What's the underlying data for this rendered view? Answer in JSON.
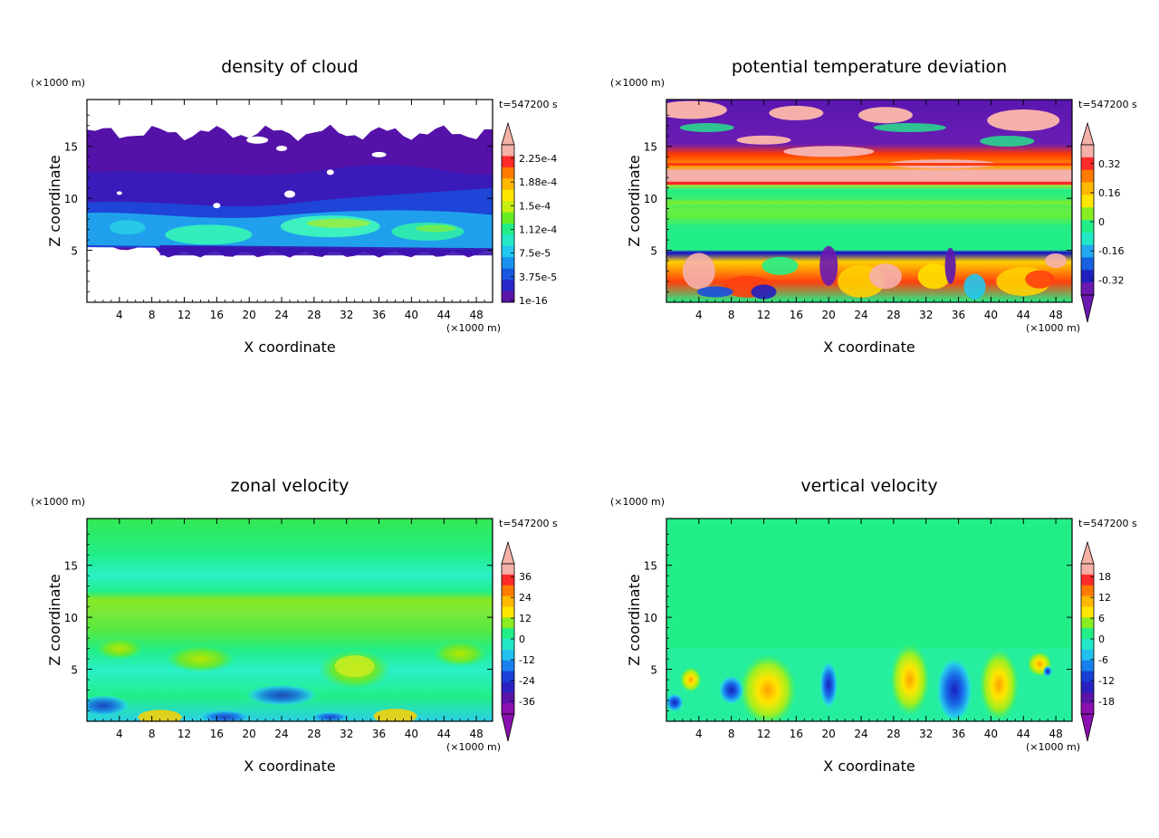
{
  "panels": [
    {
      "id": "cloud",
      "title": "density of cloud",
      "time_label": "t=547200 s",
      "xlabel": "X coordinate",
      "ylabel": "Z coordinate",
      "x_unit": "(×1000 m)",
      "y_unit": "(×1000 m)",
      "x_ticks": [
        "4",
        "8",
        "12",
        "16",
        "20",
        "24",
        "28",
        "32",
        "36",
        "40",
        "44",
        "48"
      ],
      "y_ticks": [
        "5",
        "10",
        "15"
      ],
      "colorbar_labels": [
        "2.25e-4",
        "1.88e-4",
        "1.5e-4",
        "1.12e-4",
        "7.5e-5",
        "3.75e-5",
        "1e-16"
      ]
    },
    {
      "id": "theta",
      "title": "potential temperature deviation",
      "time_label": "t=547200 s",
      "xlabel": "X coordinate",
      "ylabel": "Z coordinate",
      "x_unit": "(×1000 m)",
      "y_unit": "(×1000 m)",
      "x_ticks": [
        "4",
        "8",
        "12",
        "16",
        "20",
        "24",
        "28",
        "32",
        "36",
        "40",
        "44",
        "48"
      ],
      "y_ticks": [
        "5",
        "10",
        "15"
      ],
      "colorbar_labels": [
        "0.32",
        "0.16",
        "0",
        "-0.16",
        "-0.32"
      ]
    },
    {
      "id": "u",
      "title": "zonal velocity",
      "time_label": "t=547200 s",
      "xlabel": "X coordinate",
      "ylabel": "Z coordinate",
      "x_unit": "(×1000 m)",
      "y_unit": "(×1000 m)",
      "x_ticks": [
        "4",
        "8",
        "12",
        "16",
        "20",
        "24",
        "28",
        "32",
        "36",
        "40",
        "44",
        "48"
      ],
      "y_ticks": [
        "5",
        "10",
        "15"
      ],
      "colorbar_labels": [
        "36",
        "24",
        "12",
        "0",
        "-12",
        "-24",
        "-36"
      ]
    },
    {
      "id": "w",
      "title": "vertical velocity",
      "time_label": "t=547200 s",
      "xlabel": "X coordinate",
      "ylabel": "Z coordinate",
      "x_unit": "(×1000 m)",
      "y_unit": "(×1000 m)",
      "x_ticks": [
        "4",
        "8",
        "12",
        "16",
        "20",
        "24",
        "28",
        "32",
        "36",
        "40",
        "44",
        "48"
      ],
      "y_ticks": [
        "5",
        "10",
        "15"
      ],
      "colorbar_labels": [
        "18",
        "12",
        "6",
        "0",
        "-6",
        "-12",
        "-18"
      ]
    }
  ],
  "chart_data": [
    {
      "type": "heatmap",
      "title": "density of cloud",
      "xlabel": "X coordinate",
      "ylabel": "Z coordinate",
      "xlim": [
        0,
        50
      ],
      "ylim": [
        0,
        19.5
      ],
      "x_ticks": [
        4,
        8,
        12,
        16,
        20,
        24,
        28,
        32,
        36,
        40,
        44,
        48
      ],
      "y_ticks": [
        5,
        10,
        15
      ],
      "colorbar": [
        1e-16,
        3.75e-05,
        7.5e-05,
        0.000112,
        0.00015,
        0.000188,
        0.000225
      ],
      "features": [
        {
          "region": "cloud layer",
          "x_range": [
            0,
            50
          ],
          "z_range": [
            5,
            16.5
          ],
          "value": "low (1e-16 to 3.75e-5)"
        },
        {
          "region": "lower cloud band",
          "x_range": [
            0,
            50
          ],
          "z_range": [
            5,
            9
          ],
          "value": "up to ~1.5e-4"
        }
      ]
    },
    {
      "type": "heatmap",
      "title": "potential temperature deviation",
      "xlabel": "X coordinate",
      "ylabel": "Z coordinate",
      "xlim": [
        0,
        50
      ],
      "ylim": [
        0,
        19.5
      ],
      "x_ticks": [
        4,
        8,
        12,
        16,
        20,
        24,
        28,
        32,
        36,
        40,
        44,
        48
      ],
      "y_ticks": [
        5,
        10,
        15
      ],
      "colorbar": [
        -0.32,
        -0.16,
        0,
        0.16,
        0.32
      ],
      "features": [
        {
          "region": "upper layer",
          "z_range": [
            12,
            19.5
          ],
          "value": "mixed -0.32 to >0.32"
        },
        {
          "region": "warm band",
          "z_range": [
            11.5,
            14
          ],
          "value": ">0.32"
        },
        {
          "region": "mid layer",
          "z_range": [
            5,
            11.5
          ],
          "value": "near 0"
        },
        {
          "region": "boundary layer",
          "z_range": [
            0,
            5
          ],
          "value": "mixed -0.32 to >0.32"
        }
      ]
    },
    {
      "type": "heatmap",
      "title": "zonal velocity",
      "xlabel": "X coordinate",
      "ylabel": "Z coordinate",
      "xlim": [
        0,
        50
      ],
      "ylim": [
        0,
        19.5
      ],
      "x_ticks": [
        4,
        8,
        12,
        16,
        20,
        24,
        28,
        32,
        36,
        40,
        44,
        48
      ],
      "y_ticks": [
        5,
        10,
        15
      ],
      "colorbar": [
        -36,
        -24,
        -12,
        0,
        12,
        24,
        36
      ],
      "features": [
        {
          "region": "upper",
          "z_range": [
            13,
            19.5
          ],
          "value": "~0 to -6"
        },
        {
          "region": "jet",
          "z_range": [
            10,
            13
          ],
          "value": "~6"
        },
        {
          "region": "lower",
          "z_range": [
            0,
            8
          ],
          "value": "-12 to 12"
        }
      ]
    },
    {
      "type": "heatmap",
      "title": "vertical velocity",
      "xlabel": "X coordinate",
      "ylabel": "Z coordinate",
      "xlim": [
        0,
        50
      ],
      "ylim": [
        0,
        19.5
      ],
      "x_ticks": [
        4,
        8,
        12,
        16,
        20,
        24,
        28,
        32,
        36,
        40,
        44,
        48
      ],
      "y_ticks": [
        5,
        10,
        15
      ],
      "colorbar": [
        -18,
        -12,
        -6,
        0,
        6,
        12,
        18
      ],
      "features": [
        {
          "region": "updraft",
          "x_center": 12.5,
          "z_center": 3,
          "value": "~12"
        },
        {
          "region": "updraft",
          "x_center": 30,
          "z_center": 4,
          "value": "~12"
        },
        {
          "region": "downdraft",
          "x_center": 35.5,
          "z_center": 3,
          "value": "~-12"
        },
        {
          "region": "updraft",
          "x_center": 41,
          "z_center": 3.5,
          "value": "~12"
        },
        {
          "region": "downdraft",
          "x_center": 20,
          "z_center": 3.5,
          "value": "~-12"
        }
      ]
    }
  ]
}
